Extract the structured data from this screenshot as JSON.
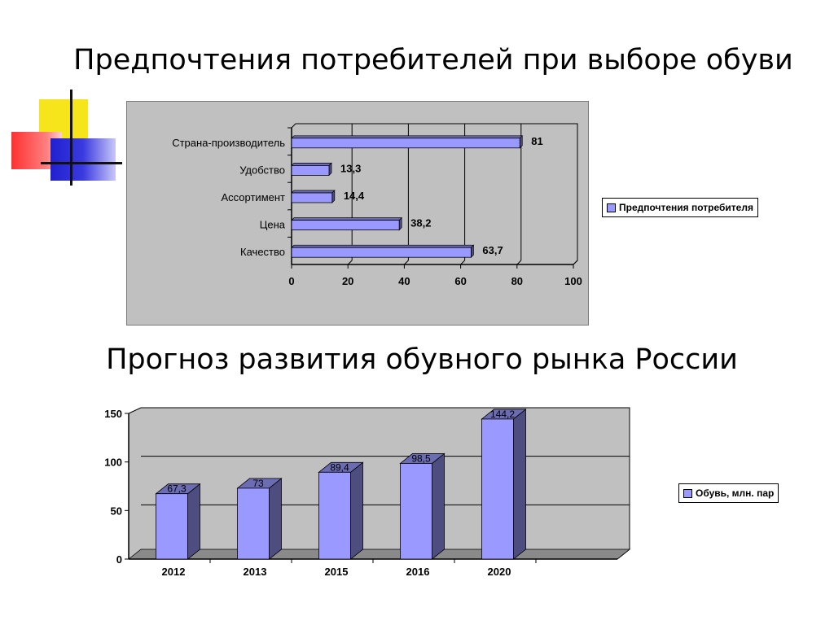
{
  "slide": {
    "title_top": "Предпочтения потребителей при выборе обуви",
    "title_bottom": "Прогноз развития обувного рынка России"
  },
  "colors": {
    "bar_face": "#9999ff",
    "bar_side": "#4d4d80",
    "bar_top": "#6c6cb3",
    "panel_bg": "#c0c0c0",
    "plot_bg": "#c0c0c0",
    "axis": "#000000"
  },
  "chart_data": [
    {
      "type": "bar",
      "orientation": "horizontal",
      "categories": [
        "Страна-производитель",
        "Удобство",
        "Ассортимент",
        "Цена",
        "Качество"
      ],
      "series": [
        {
          "name": "Предпочтения потребителя",
          "values": [
            81,
            13.3,
            14.4,
            38.2,
            63.7
          ]
        }
      ],
      "value_labels": [
        "81",
        "13,3",
        "14,4",
        "38,2",
        "63,7"
      ],
      "xlim": [
        0,
        100
      ],
      "xticks": [
        "0",
        "20",
        "40",
        "60",
        "80",
        "100"
      ],
      "grid": true,
      "legend": "right"
    },
    {
      "type": "bar",
      "orientation": "vertical",
      "categories": [
        "2012",
        "2013",
        "2015",
        "2016",
        "2020"
      ],
      "series": [
        {
          "name": "Обувь, млн. пар",
          "values": [
            67.3,
            73,
            89.4,
            98.5,
            144.2
          ]
        }
      ],
      "value_labels": [
        "67,3",
        "73",
        "89,4",
        "98,5",
        "144,2"
      ],
      "ylim": [
        0,
        150
      ],
      "yticks": [
        "0",
        "50",
        "100",
        "150"
      ],
      "grid": true,
      "legend": "right"
    }
  ]
}
